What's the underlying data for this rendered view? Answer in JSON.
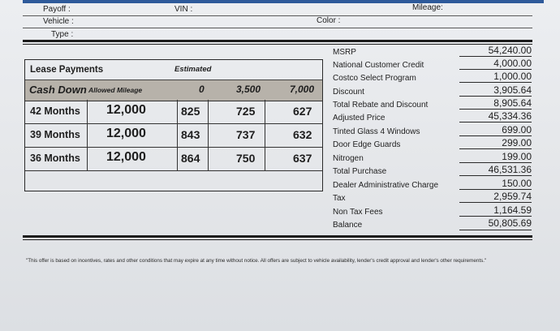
{
  "header": {
    "payoff_label": "Payoff :",
    "vin_label": "VIN :",
    "mileage_label": "Mileage:",
    "vehicle_label": "Vehicle :",
    "color_label": "Color :",
    "type_label": "Type :"
  },
  "lease": {
    "title": "Lease Payments",
    "estimated": "Estimated",
    "cash_down_label": "Cash Down",
    "allowed_mileage_label": "Allowed Mileage",
    "cash_down_options": [
      "0",
      "3,500",
      "7,000"
    ],
    "rows": [
      {
        "term": "42 Months",
        "mileage": "12,000",
        "payments": [
          "825",
          "725",
          "627"
        ]
      },
      {
        "term": "39 Months",
        "mileage": "12,000",
        "payments": [
          "843",
          "737",
          "632"
        ]
      },
      {
        "term": "36 Months",
        "mileage": "12,000",
        "payments": [
          "864",
          "750",
          "637"
        ]
      }
    ]
  },
  "costs": [
    {
      "label": "MSRP",
      "value": "54,240.00"
    },
    {
      "label": "National Customer Credit",
      "value": "4,000.00"
    },
    {
      "label": "Costco Select Program",
      "value": "1,000.00"
    },
    {
      "label": "Discount",
      "value": "3,905.64"
    },
    {
      "label": "Total Rebate and Discount",
      "value": "8,905.64"
    },
    {
      "label": "Adjusted Price",
      "value": "45,334.36"
    },
    {
      "label": "Tinted Glass 4 Windows",
      "value": "699.00"
    },
    {
      "label": "Door Edge Guards",
      "value": "299.00"
    },
    {
      "label": "Nitrogen",
      "value": "199.00"
    },
    {
      "label": "Total Purchase",
      "value": "46,531.36"
    },
    {
      "label": "Dealer Administrative Charge",
      "value": "150.00"
    },
    {
      "label": "Tax",
      "value": "2,959.74"
    },
    {
      "label": "Non Tax Fees",
      "value": "1,164.59"
    },
    {
      "label": "Balance",
      "value": "50,805.69"
    }
  ],
  "disclaimer": "\"This offer is based on incentives, rates and other conditions that may expire at any time without notice. All offers are subject to vehicle availability, lender's credit approval and lender's other requirements.\""
}
